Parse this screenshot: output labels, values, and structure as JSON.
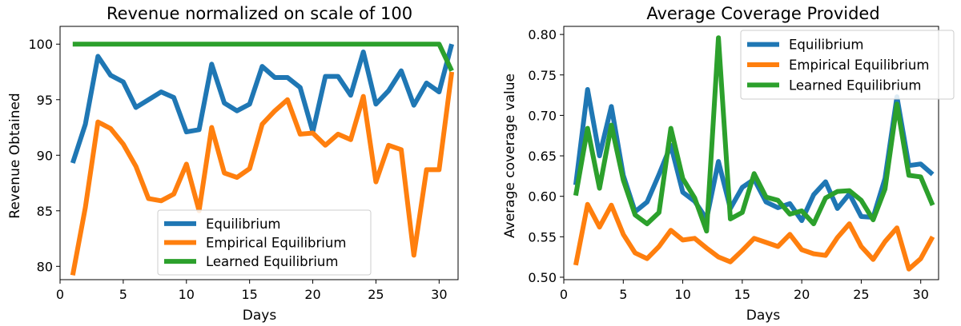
{
  "chart_data": [
    {
      "type": "line",
      "title": "Revenue normalized on scale of 100",
      "xlabel": "Days",
      "ylabel": "Revenue Obtained",
      "xlim": [
        0,
        31.5
      ],
      "ylim": [
        78.8,
        101.6
      ],
      "xticks": [
        0,
        5,
        10,
        15,
        20,
        25,
        30
      ],
      "yticks": [
        80,
        85,
        90,
        95,
        100
      ],
      "legend_position": "lower center",
      "x": [
        1,
        2,
        3,
        4,
        5,
        6,
        7,
        8,
        9,
        10,
        11,
        12,
        13,
        14,
        15,
        16,
        17,
        18,
        19,
        20,
        21,
        22,
        23,
        24,
        25,
        26,
        27,
        28,
        29,
        30,
        31
      ],
      "series": [
        {
          "name": "Equilibrium",
          "color": "#1f77b4",
          "values": [
            89.3,
            92.8,
            98.9,
            97.2,
            96.6,
            94.3,
            95.0,
            95.7,
            95.2,
            92.1,
            92.3,
            98.2,
            94.7,
            94.0,
            94.6,
            98.0,
            97.0,
            97.0,
            96.1,
            92.1,
            97.1,
            97.1,
            95.4,
            99.3,
            94.6,
            95.8,
            97.6,
            94.5,
            96.5,
            95.7,
            100.0
          ]
        },
        {
          "name": "Empirical Equilibrium",
          "color": "#ff7f0e",
          "values": [
            79.2,
            85.3,
            93.0,
            92.4,
            91.0,
            89.0,
            86.1,
            85.9,
            86.5,
            89.2,
            85.0,
            92.5,
            88.4,
            88.0,
            88.8,
            92.8,
            94.0,
            95.0,
            91.9,
            92.0,
            90.9,
            91.9,
            91.4,
            95.3,
            87.6,
            90.9,
            90.5,
            81.0,
            88.7,
            88.7,
            97.5
          ]
        },
        {
          "name": "Learned Equilibrium",
          "color": "#2ca02c",
          "values": [
            100,
            100,
            100,
            100,
            100,
            100,
            100,
            100,
            100,
            100,
            100,
            100,
            100,
            100,
            100,
            100,
            100,
            100,
            100,
            100,
            100,
            100,
            100,
            100,
            100,
            100,
            100,
            100,
            100,
            100,
            97.6
          ]
        }
      ]
    },
    {
      "type": "line",
      "title": "Average Coverage Provided",
      "xlabel": "Days",
      "ylabel": "Average coverage value",
      "xlim": [
        0,
        31.5
      ],
      "ylim": [
        0.497,
        0.81
      ],
      "xticks": [
        0,
        5,
        10,
        15,
        20,
        25,
        30
      ],
      "yticks": [
        0.5,
        0.55,
        0.6,
        0.65,
        0.7,
        0.75,
        0.8
      ],
      "legend_position": "upper right",
      "x": [
        1,
        2,
        3,
        4,
        5,
        6,
        7,
        8,
        9,
        10,
        11,
        12,
        13,
        14,
        15,
        16,
        17,
        18,
        19,
        20,
        21,
        22,
        23,
        24,
        25,
        26,
        27,
        28,
        29,
        30,
        31
      ],
      "series": [
        {
          "name": "Equilibrium",
          "color": "#1f77b4",
          "values": [
            0.614,
            0.732,
            0.65,
            0.711,
            0.626,
            0.581,
            0.593,
            0.627,
            0.663,
            0.605,
            0.594,
            0.572,
            0.643,
            0.585,
            0.611,
            0.621,
            0.593,
            0.586,
            0.591,
            0.57,
            0.602,
            0.618,
            0.585,
            0.603,
            0.575,
            0.574,
            0.622,
            0.723,
            0.638,
            0.64,
            0.627
          ]
        },
        {
          "name": "Empirical Equilibrium",
          "color": "#ff7f0e",
          "values": [
            0.515,
            0.59,
            0.562,
            0.589,
            0.553,
            0.53,
            0.523,
            0.538,
            0.558,
            0.546,
            0.548,
            0.536,
            0.525,
            0.519,
            0.533,
            0.548,
            0.543,
            0.538,
            0.553,
            0.534,
            0.529,
            0.527,
            0.549,
            0.566,
            0.538,
            0.522,
            0.544,
            0.561,
            0.51,
            0.523,
            0.55
          ]
        },
        {
          "name": "Learned Equilibrium",
          "color": "#2ca02c",
          "values": [
            0.601,
            0.684,
            0.61,
            0.688,
            0.62,
            0.577,
            0.566,
            0.58,
            0.684,
            0.622,
            0.598,
            0.557,
            0.796,
            0.572,
            0.58,
            0.628,
            0.599,
            0.595,
            0.578,
            0.582,
            0.566,
            0.598,
            0.606,
            0.607,
            0.595,
            0.571,
            0.609,
            0.714,
            0.626,
            0.624,
            0.589
          ]
        }
      ]
    }
  ]
}
